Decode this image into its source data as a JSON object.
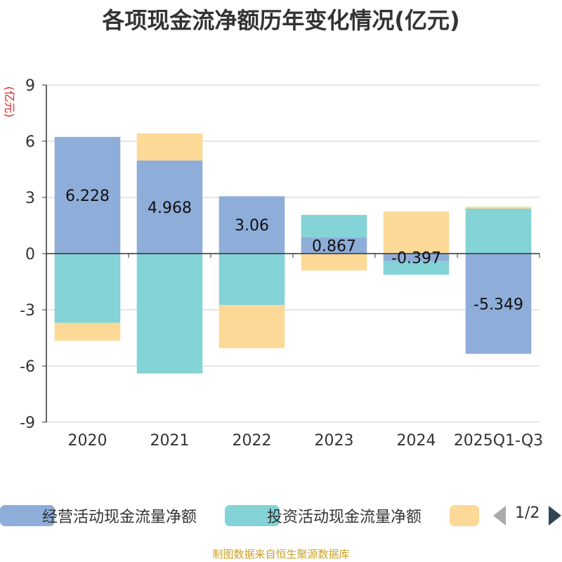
{
  "chart_data": {
    "type": "bar",
    "stacked": true,
    "title": "各项现金流净额历年变化情况(亿元)",
    "ylabel": "(亿元)",
    "xlabel": "",
    "ylim": [
      -9,
      9
    ],
    "yticks": [
      -9,
      -6,
      -3,
      0,
      3,
      6,
      9
    ],
    "categories": [
      "2020",
      "2021",
      "2022",
      "2023",
      "2024",
      "2025Q1-Q3"
    ],
    "series": [
      {
        "name": "经营活动现金流量净额",
        "color": "#8eadd9",
        "values": [
          6.228,
          4.968,
          3.06,
          0.867,
          -0.397,
          -5.349
        ]
      },
      {
        "name": "投资活动现金流量净额",
        "color": "#84d3d6",
        "values": [
          -3.7,
          -6.4,
          -2.75,
          1.2,
          -0.73,
          2.4
        ]
      },
      {
        "name": "",
        "color": "#fdd998",
        "values": [
          -0.95,
          1.45,
          -2.3,
          -0.9,
          2.25,
          0.1
        ]
      }
    ],
    "data_labels": [
      "6.228",
      "4.968",
      "3.06",
      "0.867",
      "-0.397",
      "-5.349"
    ],
    "legend_position": "bottom"
  },
  "legend": {
    "page": "1/2"
  },
  "source": "制图数据来自恒生聚源数据库"
}
